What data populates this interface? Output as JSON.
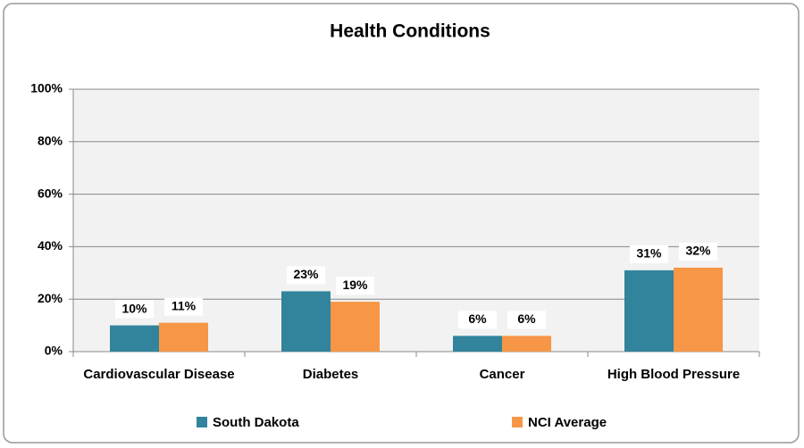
{
  "chart_data": {
    "type": "bar",
    "title": "Health Conditions",
    "categories": [
      "Cardiovascular Disease",
      "Diabetes",
      "Cancer",
      "High Blood Pressure"
    ],
    "series": [
      {
        "name": "South Dakota",
        "color": "#31849b",
        "values": [
          10,
          23,
          6,
          31
        ],
        "value_labels": [
          "10%",
          "23%",
          "6%",
          "31%"
        ]
      },
      {
        "name": "NCI Average",
        "color": "#f79646",
        "values": [
          11,
          19,
          6,
          32
        ],
        "value_labels": [
          "11%",
          "19%",
          "6%",
          "32%"
        ]
      }
    ],
    "ylim": [
      0,
      100
    ],
    "yticks": [
      {
        "value": 0,
        "label": "0%"
      },
      {
        "value": 20,
        "label": "20%"
      },
      {
        "value": 40,
        "label": "40%"
      },
      {
        "value": 60,
        "label": "60%"
      },
      {
        "value": 80,
        "label": "80%"
      },
      {
        "value": 100,
        "label": "100%"
      }
    ],
    "grid": true,
    "legend": "bottom"
  }
}
